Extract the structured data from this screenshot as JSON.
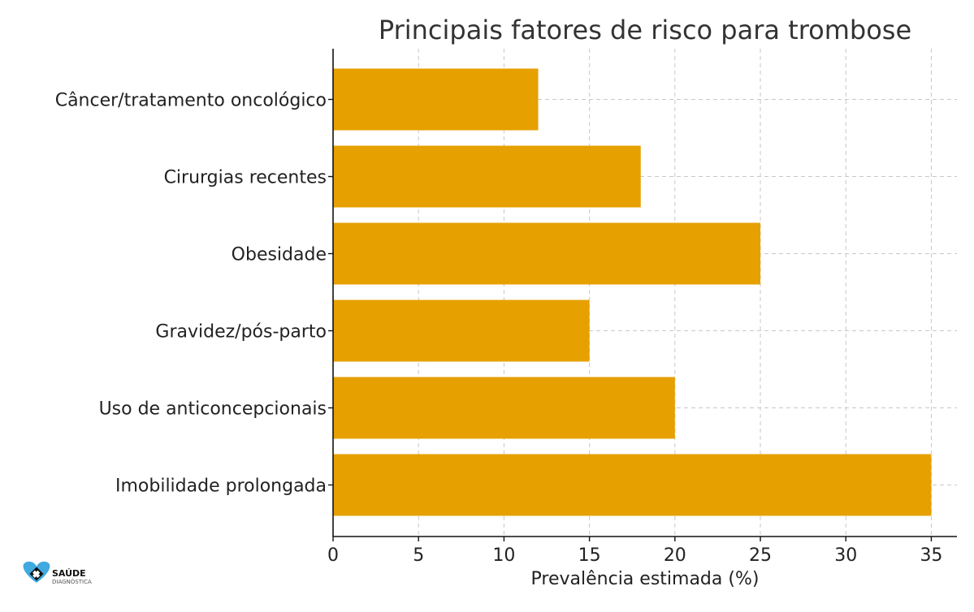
{
  "chart_data": {
    "type": "bar",
    "orientation": "horizontal",
    "title": "Principais fatores de risco para trombose",
    "xlabel": "Prevalência estimada (%)",
    "ylabel": "",
    "categories": [
      "Imobilidade prolongada",
      "Uso de anticoncepcionais",
      "Gravidez/pós-parto",
      "Obesidade",
      "Cirurgias recentes",
      "Câncer/tratamento oncológico"
    ],
    "values": [
      35,
      20,
      15,
      25,
      18,
      12
    ],
    "xlim": [
      0,
      36.5
    ],
    "xticks": [
      0,
      5,
      10,
      15,
      20,
      25,
      30,
      35
    ],
    "grid": true,
    "bar_color": "#E6A000"
  },
  "logo": {
    "name": "SAÚDE",
    "subtitle": "DIAGNÓSTICA",
    "heart_color": "#3FA9E0",
    "cross_color": "#111111"
  }
}
